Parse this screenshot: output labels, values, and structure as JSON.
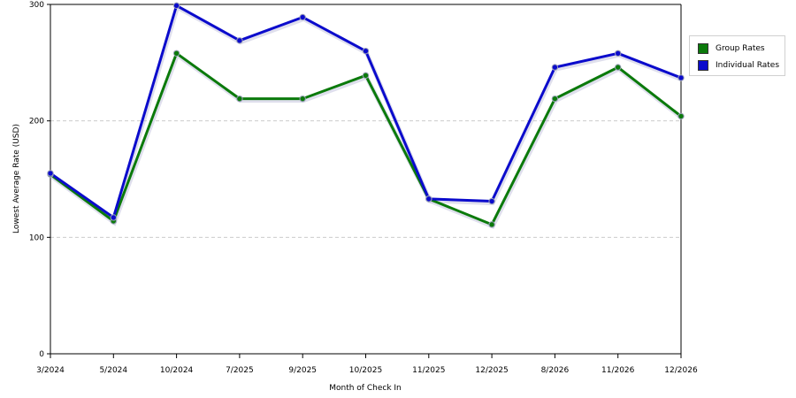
{
  "chart_data": {
    "type": "line",
    "title": "",
    "xlabel": "Month of Check In",
    "ylabel": "Lowest Average Rate (USD)",
    "ylim": [
      0,
      300
    ],
    "yticks": [
      0,
      100,
      200,
      300
    ],
    "grid": true,
    "legend_position": "right",
    "categories": [
      "3/2024",
      "5/2024",
      "10/2024",
      "7/2025",
      "9/2025",
      "10/2025",
      "11/2025",
      "12/2025",
      "8/2026",
      "11/2026",
      "12/2026"
    ],
    "series": [
      {
        "name": "Group Rates",
        "color": "#0b7a0b",
        "values": [
          154,
          114,
          258,
          219,
          219,
          239,
          133,
          111,
          219,
          246,
          204
        ]
      },
      {
        "name": "Individual Rates",
        "color": "#0b0bcc",
        "values": [
          155,
          117,
          299,
          269,
          289,
          260,
          133,
          131,
          246,
          258,
          237
        ]
      }
    ]
  }
}
